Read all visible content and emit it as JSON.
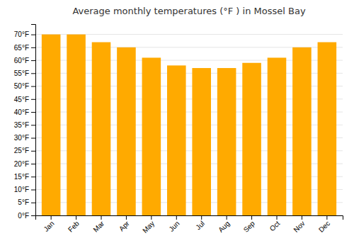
{
  "chart_data": {
    "type": "bar",
    "title": "Average monthly temperatures (°F ) in Mossel Bay",
    "categories": [
      "Jan",
      "Feb",
      "Mar",
      "Apr",
      "May",
      "Jun",
      "Jul",
      "Aug",
      "Sep",
      "Oct",
      "Nov",
      "Dec"
    ],
    "values": [
      70,
      70,
      67,
      65,
      61,
      58,
      57,
      57,
      59,
      61,
      65,
      67
    ],
    "color": "#FFAA00",
    "ylim": [
      0,
      74
    ],
    "yticks": [
      {
        "value": 0,
        "label": "0°F"
      },
      {
        "value": 5,
        "label": "5°F"
      },
      {
        "value": 10,
        "label": "10°F"
      },
      {
        "value": 15,
        "label": "15°F"
      },
      {
        "value": 20,
        "label": "20°F"
      },
      {
        "value": 25,
        "label": "25°F"
      },
      {
        "value": 30,
        "label": "30°F"
      },
      {
        "value": 35,
        "label": "35°F"
      },
      {
        "value": 40,
        "label": "40°F"
      },
      {
        "value": 45,
        "label": "45°F"
      },
      {
        "value": 50,
        "label": "50°F"
      },
      {
        "value": 55,
        "label": "55°F"
      },
      {
        "value": 60,
        "label": "60°F"
      },
      {
        "value": 65,
        "label": "65°F"
      },
      {
        "value": 70,
        "label": "70°F"
      }
    ],
    "grid": true
  }
}
